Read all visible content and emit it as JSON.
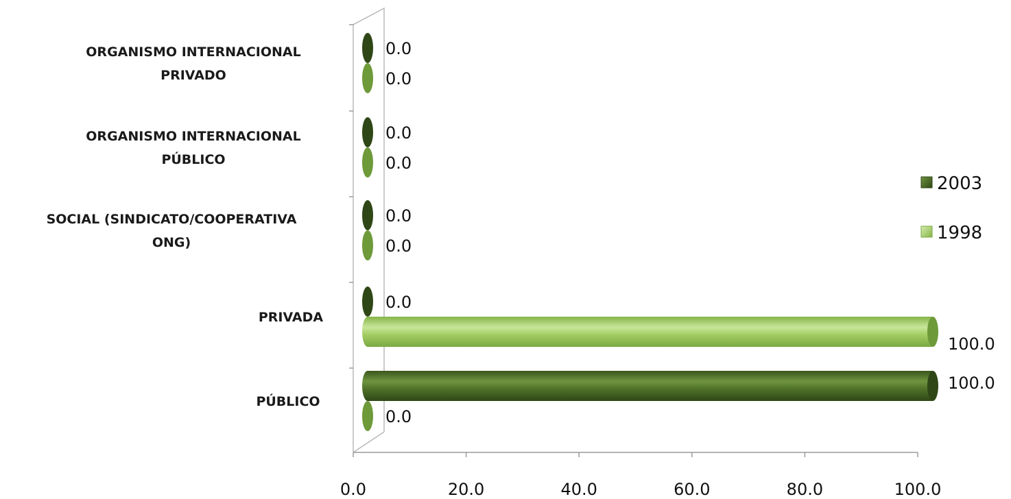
{
  "chart_data": {
    "type": "bar",
    "orientation": "horizontal",
    "style": "3d-cylinder",
    "categories": [
      [
        "PÚBLICO"
      ],
      [
        "PRIVADA"
      ],
      [
        "SOCIAL (SINDICATO/COOPERATIVA",
        "ONG)"
      ],
      [
        "ORGANISMO INTERNACIONAL",
        "PÚBLICO"
      ],
      [
        "ORGANISMO INTERNACIONAL",
        "PRIVADO"
      ]
    ],
    "series": [
      {
        "name": "2003",
        "values": [
          100.0,
          0.0,
          0.0,
          0.0,
          0.0
        ],
        "value_labels": [
          "100.0",
          "0.0",
          "0.0",
          "0.0",
          "0.0"
        ],
        "color": "#4a6a26"
      },
      {
        "name": "1998",
        "values": [
          0.0,
          100.0,
          0.0,
          0.0,
          0.0
        ],
        "value_labels": [
          "0.0",
          "100.0",
          "0.0",
          "0.0",
          "0.0"
        ],
        "color": "#a2cc62"
      }
    ],
    "xlim": [
      0,
      100
    ],
    "xticks": [
      "0.0",
      "20.0",
      "40.0",
      "60.0",
      "80.0",
      "100.0"
    ],
    "xtick_values": [
      0,
      20,
      40,
      60,
      80,
      100
    ],
    "grid": false,
    "legend_position": "right"
  }
}
